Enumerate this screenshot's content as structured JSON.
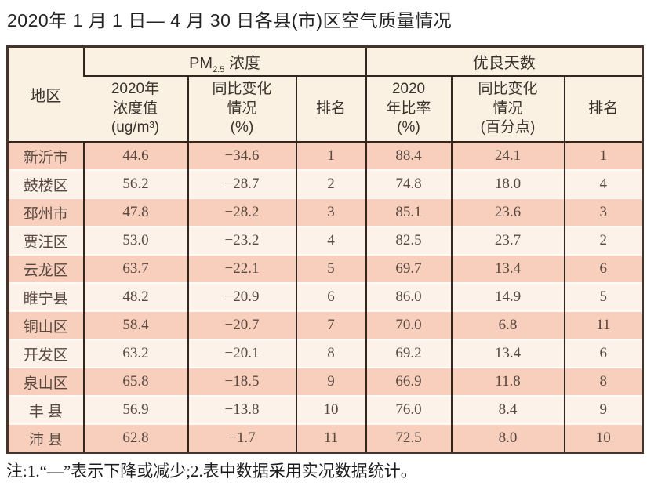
{
  "title": "2020年 1 月 1 日— 4 月 30 日各县(市)区空气质量情况",
  "footnote": "注:1.“—”表示下降或减少;2.表中数据采用实况数据统计。",
  "colors": {
    "row_odd": "#f8cfbd",
    "row_even": "#fcf2ea",
    "header_bg": "#fbf1e3",
    "border_outer": "#46332b",
    "border_inner": "#33261e",
    "text": "#58483f",
    "header_text": "#3a322b",
    "title_text": "#232323"
  },
  "table": {
    "region_header": "地区",
    "group_headers": {
      "pm25_prefix": "PM",
      "pm25_sub": "2.5",
      "pm25_suffix": " 浓度",
      "good_days": "优良天数"
    },
    "sub_headers": {
      "pm25_value": "2020年\n浓度值\n(ug/m³)",
      "pm25_change": "同比变化\n情况\n(%)",
      "pm25_rank": "排名",
      "good_ratio": "2020\n年比率\n(%)",
      "good_change": "同比变化\n情况\n(百分点)",
      "good_rank": "排名"
    },
    "rows": [
      {
        "region": "新沂市",
        "pm25_value": "44.6",
        "pm25_change": "−34.6",
        "pm25_rank": "1",
        "good_ratio": "88.4",
        "good_change": "24.1",
        "good_rank": "1"
      },
      {
        "region": "鼓楼区",
        "pm25_value": "56.2",
        "pm25_change": "−28.7",
        "pm25_rank": "2",
        "good_ratio": "74.8",
        "good_change": "18.0",
        "good_rank": "4"
      },
      {
        "region": "邳州市",
        "pm25_value": "47.8",
        "pm25_change": "−28.2",
        "pm25_rank": "3",
        "good_ratio": "85.1",
        "good_change": "23.6",
        "good_rank": "3"
      },
      {
        "region": "贾汪区",
        "pm25_value": "53.0",
        "pm25_change": "−23.2",
        "pm25_rank": "4",
        "good_ratio": "82.5",
        "good_change": "23.7",
        "good_rank": "2"
      },
      {
        "region": "云龙区",
        "pm25_value": "63.7",
        "pm25_change": "−22.1",
        "pm25_rank": "5",
        "good_ratio": "69.7",
        "good_change": "13.4",
        "good_rank": "6"
      },
      {
        "region": "睢宁县",
        "pm25_value": "48.2",
        "pm25_change": "−20.9",
        "pm25_rank": "6",
        "good_ratio": "86.0",
        "good_change": "14.9",
        "good_rank": "5"
      },
      {
        "region": "铜山区",
        "pm25_value": "58.4",
        "pm25_change": "−20.7",
        "pm25_rank": "7",
        "good_ratio": "70.0",
        "good_change": "6.8",
        "good_rank": "11"
      },
      {
        "region": "开发区",
        "pm25_value": "63.2",
        "pm25_change": "−20.1",
        "pm25_rank": "8",
        "good_ratio": "69.2",
        "good_change": "13.4",
        "good_rank": "6"
      },
      {
        "region": "泉山区",
        "pm25_value": "65.8",
        "pm25_change": "−18.5",
        "pm25_rank": "9",
        "good_ratio": "66.9",
        "good_change": "11.8",
        "good_rank": "8"
      },
      {
        "region": "丰 县",
        "pm25_value": "56.9",
        "pm25_change": "−13.8",
        "pm25_rank": "10",
        "good_ratio": "76.0",
        "good_change": "8.4",
        "good_rank": "9"
      },
      {
        "region": "沛 县",
        "pm25_value": "62.8",
        "pm25_change": "−1.7",
        "pm25_rank": "11",
        "good_ratio": "72.5",
        "good_change": "8.0",
        "good_rank": "10"
      }
    ]
  }
}
